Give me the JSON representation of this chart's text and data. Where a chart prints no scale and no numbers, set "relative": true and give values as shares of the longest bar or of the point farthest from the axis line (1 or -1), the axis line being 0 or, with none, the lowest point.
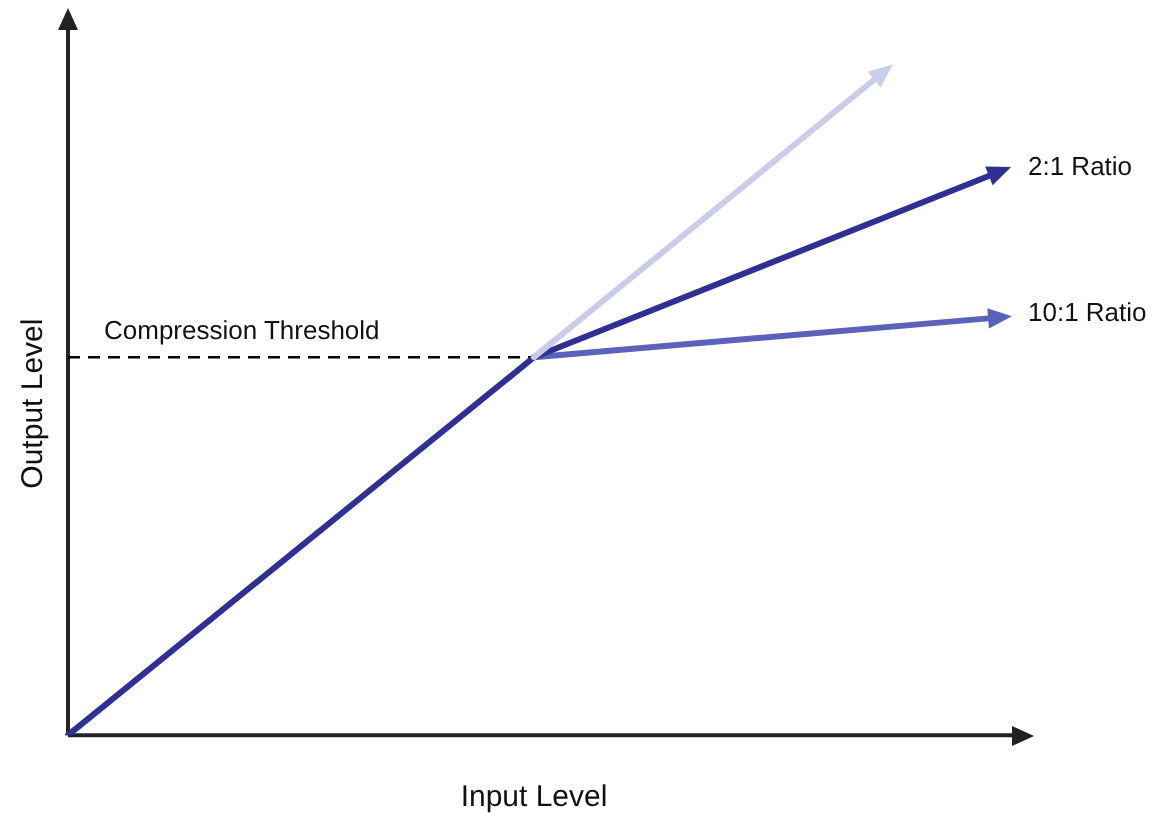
{
  "chart_data": {
    "type": "line",
    "relative": true,
    "xlabel": "Input Level",
    "ylabel": "Output Level",
    "grid": false,
    "line_style": "solid",
    "categories": [
      null,
      null,
      null,
      null,
      null,
      null,
      null,
      null,
      null
    ],
    "series": [
      {
        "color": "#c9cde9",
        "values": [
          null,
          null,
          null,
          null,
          0.57,
          null,
          null,
          1,
          null
        ]
      },
      {
        "name": "2:1 Ratio",
        "color": "#2e3192",
        "values": [
          0,
          null,
          null,
          null,
          0.57,
          null,
          null,
          null,
          0.85
        ]
      },
      {
        "name": "10:1 Ratio",
        "color": "#5a62bb",
        "values": [
          null,
          null,
          null,
          null,
          0.57,
          null,
          null,
          null,
          0.63
        ]
      }
    ],
    "ref_lines": [
      {
        "axis": "y",
        "value": 0.57,
        "label": "Compression Threshold",
        "color": "#000000",
        "line_style": "dashed"
      }
    ]
  }
}
